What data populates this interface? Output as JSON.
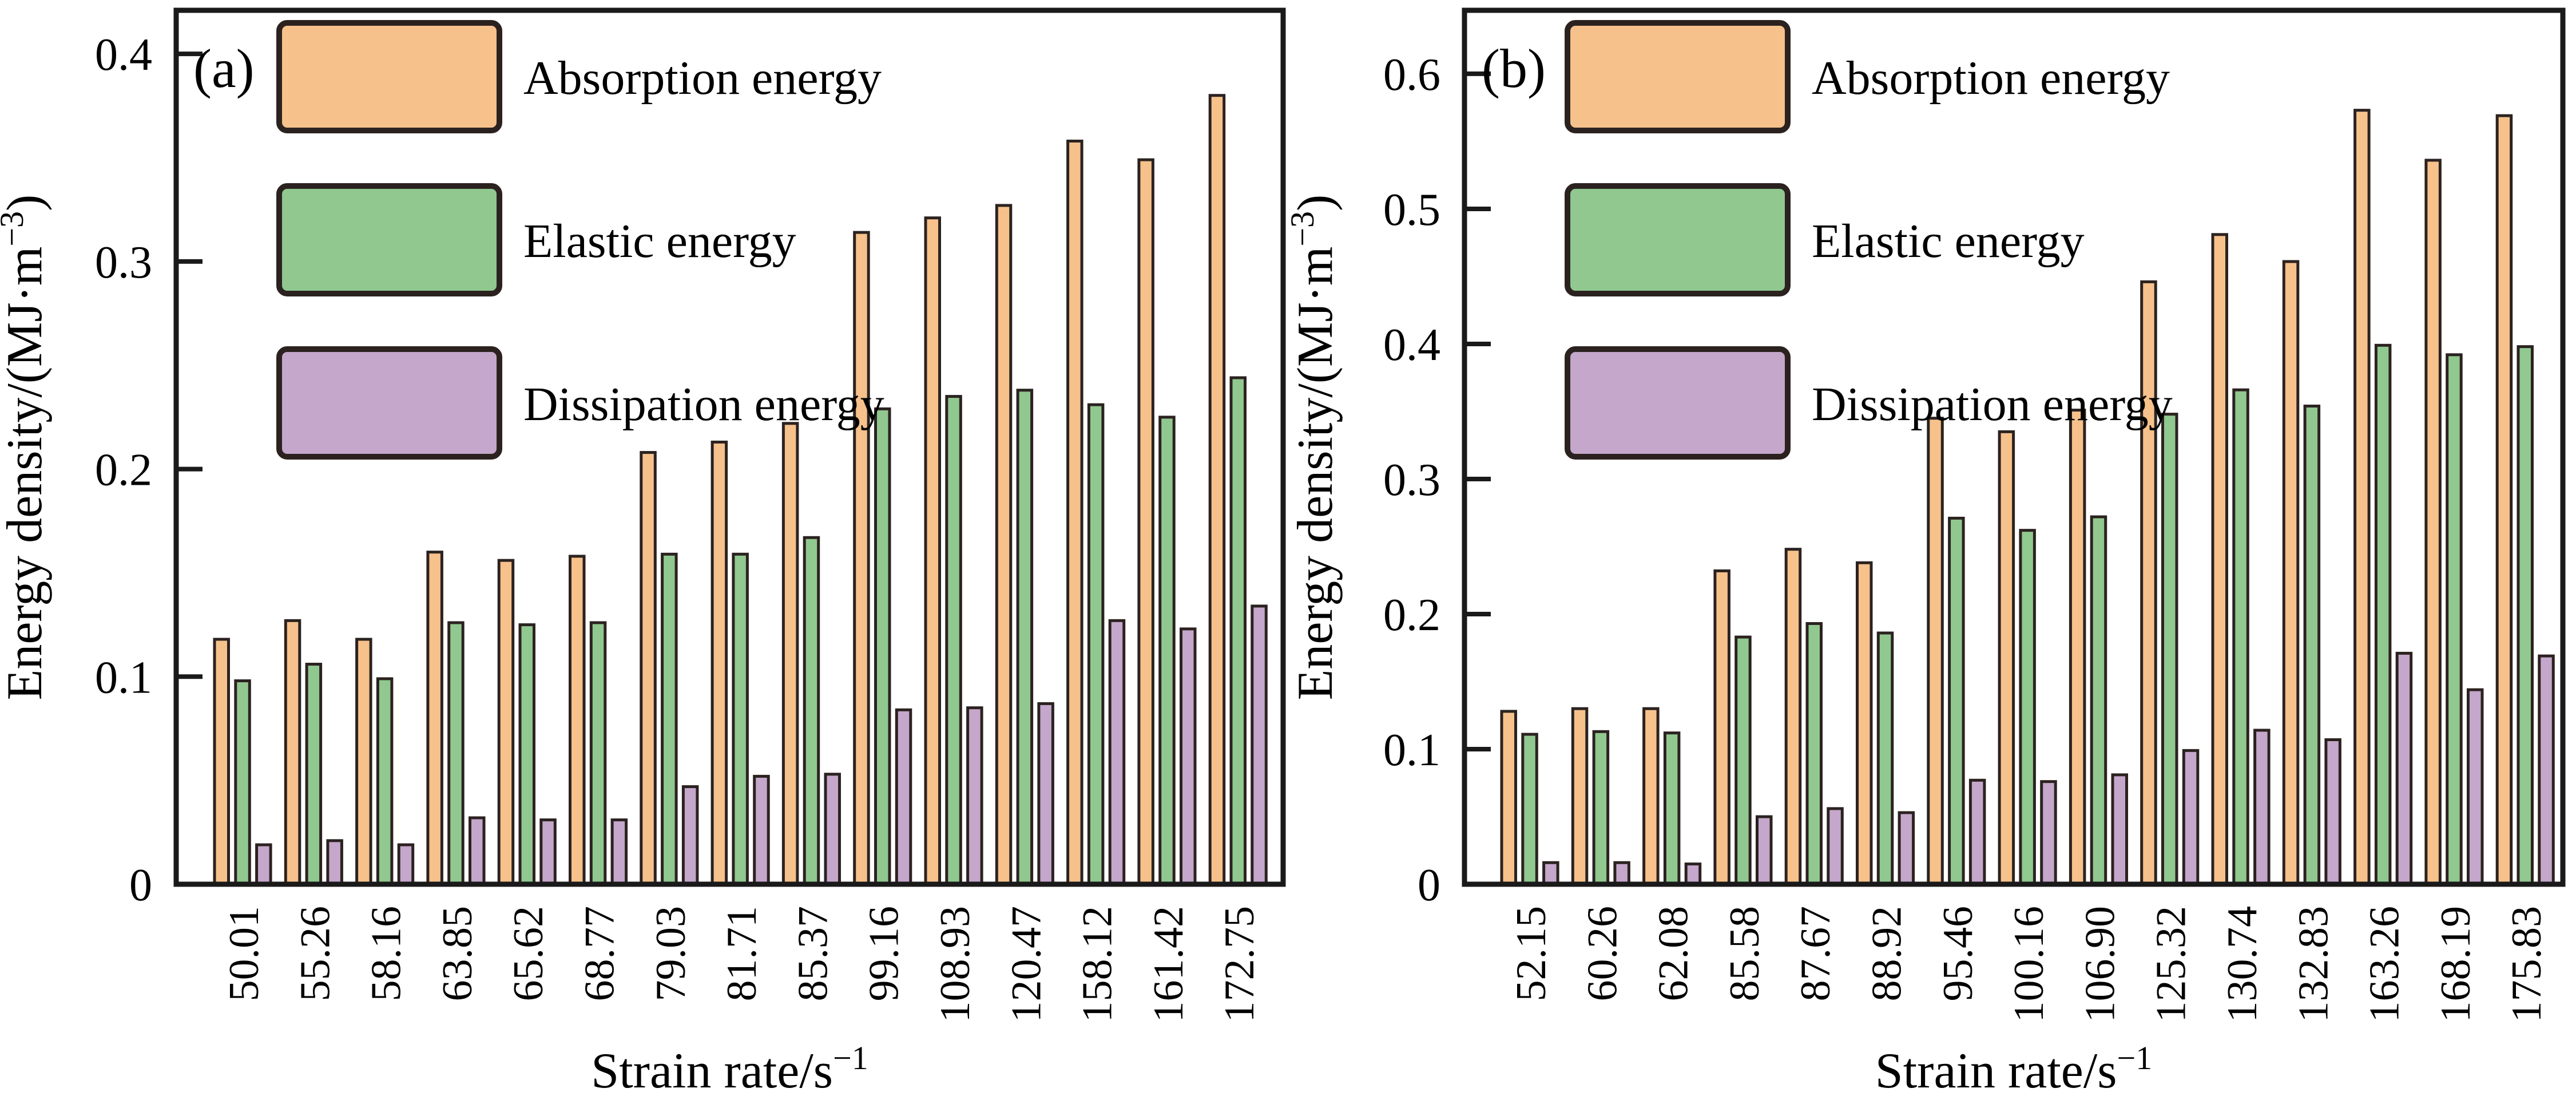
{
  "figure": {
    "background": "#ffffff",
    "axis_color": "#1a1a1a",
    "bar_edge_color": "#2b2220",
    "text_color": "#000000",
    "series_colors": [
      "#f6c18b",
      "#90c88f",
      "#c4a7cb"
    ]
  },
  "legend": {
    "items": [
      {
        "label": "Absorption energy",
        "color": "#f6c18b"
      },
      {
        "label": "Elastic energy",
        "color": "#90c88f"
      },
      {
        "label": "Dissipation energy",
        "color": "#c4a7cb"
      }
    ]
  },
  "chart_data": [
    {
      "type": "bar",
      "panel_label": "(a)",
      "xlabel": {
        "pre": "Strain rate/s",
        "sup": "−1",
        "post": ""
      },
      "ylabel": {
        "pre": "Energy density/(MJ·m",
        "sup": "−3",
        "post": ")"
      },
      "ylim": [
        0,
        0.421
      ],
      "yticks": [
        0,
        0.1,
        0.2,
        0.3,
        0.4
      ],
      "grid": false,
      "legend_position": "top-left",
      "categories": [
        "50.01",
        "55.26",
        "58.16",
        "63.85",
        "65.62",
        "68.77",
        "79.03",
        "81.71",
        "85.37",
        "99.16",
        "108.93",
        "120.47",
        "158.12",
        "161.42",
        "172.75"
      ],
      "series": [
        {
          "name": "Absorption energy",
          "values": [
            0.118,
            0.127,
            0.118,
            0.16,
            0.156,
            0.158,
            0.208,
            0.213,
            0.222,
            0.314,
            0.321,
            0.327,
            0.358,
            0.349,
            0.38
          ]
        },
        {
          "name": "Elastic energy",
          "values": [
            0.098,
            0.106,
            0.099,
            0.126,
            0.125,
            0.126,
            0.159,
            0.159,
            0.167,
            0.229,
            0.235,
            0.238,
            0.231,
            0.225,
            0.244
          ]
        },
        {
          "name": "Dissipation energy",
          "values": [
            0.019,
            0.021,
            0.019,
            0.032,
            0.031,
            0.031,
            0.047,
            0.052,
            0.053,
            0.084,
            0.085,
            0.087,
            0.127,
            0.123,
            0.134
          ]
        }
      ]
    },
    {
      "type": "bar",
      "panel_label": "(b)",
      "xlabel": {
        "pre": "Strain rate/s",
        "sup": "−1",
        "post": ""
      },
      "ylabel": {
        "pre": "Energy density/(MJ·m",
        "sup": "−3",
        "post": ")"
      },
      "ylim": [
        0,
        0.647
      ],
      "yticks": [
        0,
        0.1,
        0.2,
        0.3,
        0.4,
        0.5,
        0.6
      ],
      "grid": false,
      "legend_position": "top-left",
      "categories": [
        "52.15",
        "60.26",
        "62.08",
        "85.58",
        "87.67",
        "88.92",
        "95.46",
        "100.16",
        "106.90",
        "125.32",
        "130.74",
        "132.83",
        "163.26",
        "168.19",
        "175.83"
      ],
      "series": [
        {
          "name": "Absorption energy",
          "values": [
            0.128,
            0.13,
            0.13,
            0.232,
            0.248,
            0.238,
            0.345,
            0.335,
            0.351,
            0.446,
            0.481,
            0.461,
            0.573,
            0.536,
            0.569
          ]
        },
        {
          "name": "Elastic energy",
          "values": [
            0.111,
            0.113,
            0.112,
            0.183,
            0.193,
            0.186,
            0.271,
            0.262,
            0.272,
            0.348,
            0.366,
            0.354,
            0.399,
            0.392,
            0.398
          ]
        },
        {
          "name": "Dissipation energy",
          "values": [
            0.016,
            0.016,
            0.015,
            0.05,
            0.056,
            0.053,
            0.077,
            0.076,
            0.081,
            0.099,
            0.114,
            0.107,
            0.171,
            0.144,
            0.169
          ]
        }
      ]
    }
  ]
}
